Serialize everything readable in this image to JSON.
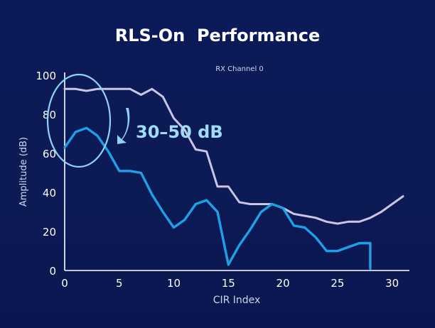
{
  "title": "RLS-On  Performance",
  "colors": {
    "background": "#0c1a55",
    "series_1": "#c9c6e4",
    "series_2": "#1ea0e6",
    "annotation": "#8fd3f3",
    "axis": "#ffffff",
    "text": "#cfd6ee"
  },
  "chart_data": {
    "type": "line",
    "subtitle": "RX Channel 0",
    "xlabel": "CIR Index",
    "ylabel": "Amplitude (dB)",
    "xlim": [
      0,
      31
    ],
    "ylim": [
      0,
      100
    ],
    "xticks": [
      0,
      5,
      10,
      15,
      20,
      25,
      30
    ],
    "yticks": [
      0,
      20,
      40,
      60,
      80,
      100
    ],
    "grid": false,
    "annotation": {
      "text": "30–50 dB",
      "shape": "ellipse",
      "arrow": "down"
    },
    "series": [
      {
        "x": [
          0,
          1,
          2,
          3,
          4,
          5,
          6,
          7,
          8,
          9,
          10,
          11,
          12,
          13,
          14,
          15,
          16,
          17,
          18,
          19,
          20,
          21,
          22,
          23,
          24,
          25,
          26,
          27,
          28,
          29,
          30,
          31
        ],
        "values": [
          93,
          93,
          92,
          93,
          93,
          93,
          93,
          90,
          93,
          89,
          78,
          72,
          62,
          61,
          43,
          43,
          35,
          34,
          34,
          34,
          32,
          29,
          28,
          27,
          25,
          24,
          25,
          25,
          27,
          30,
          34,
          38
        ]
      },
      {
        "x": [
          0,
          1,
          2,
          3,
          4,
          5,
          6,
          7,
          8,
          9,
          10,
          11,
          12,
          13,
          14,
          15,
          16,
          17,
          18,
          19,
          20,
          21,
          22,
          23,
          24,
          25,
          26,
          27,
          28,
          28
        ],
        "values": [
          63,
          71,
          73,
          69,
          61,
          51,
          51,
          50,
          39,
          30,
          22,
          26,
          34,
          36,
          30,
          3,
          13,
          21,
          30,
          34,
          32,
          23,
          22,
          17,
          10,
          10,
          12,
          14,
          14,
          1
        ]
      }
    ]
  }
}
